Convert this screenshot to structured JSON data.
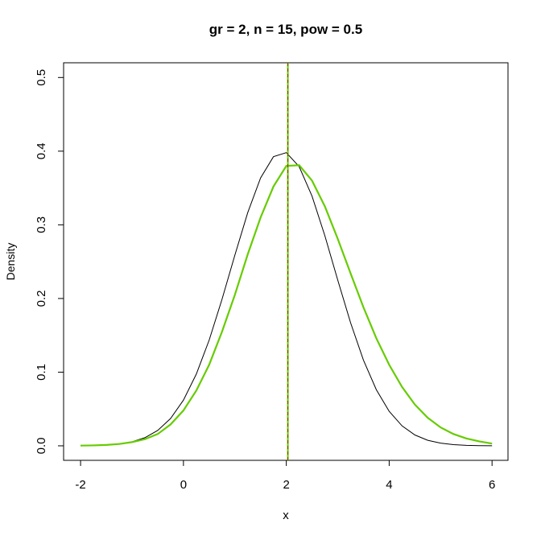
{
  "chart_data": {
    "type": "line",
    "title": "gr = 2, n = 15, pow = 0.5",
    "x_label": "x",
    "y_label": "Density",
    "xlim": [
      -2.33,
      6.31
    ],
    "ylim": [
      -0.0197,
      0.52
    ],
    "xticks": [
      -2,
      0,
      2,
      4,
      6
    ],
    "yticks": [
      {
        "value": 0,
        "label": "0.0"
      },
      0.1,
      0.2,
      0.3,
      0.4,
      0.5
    ],
    "x": [
      -2,
      -1.75,
      -1.5,
      -1.25,
      -1,
      -0.75,
      -0.5,
      -0.25,
      0,
      0.25,
      0.5,
      0.75,
      1,
      1.25,
      1.5,
      1.75,
      2,
      2.25,
      2.5,
      2.75,
      3,
      3.25,
      3.5,
      3.75,
      4,
      4.25,
      4.5,
      4.75,
      5,
      5.25,
      5.5,
      5.75,
      6
    ],
    "series": [
      {
        "color": "#000000",
        "values": [
          0.00018,
          0.00046,
          0.0011,
          0.0025,
          0.0055,
          0.011,
          0.0209,
          0.0371,
          0.062,
          0.0973,
          0.1435,
          0.1989,
          0.2589,
          0.3166,
          0.3637,
          0.3925,
          0.398,
          0.379,
          0.339,
          0.2851,
          0.225,
          0.167,
          0.1163,
          0.0762,
          0.0468,
          0.0271,
          0.0147,
          0.0075,
          0.0036,
          0.0016,
          0.0007,
          0.0003,
          0.0001
        ]
      },
      {
        "color": "#66cc00",
        "values": [
          0.0003,
          0.0006,
          0.0012,
          0.0025,
          0.005,
          0.009,
          0.016,
          0.029,
          0.048,
          0.075,
          0.11,
          0.155,
          0.205,
          0.26,
          0.31,
          0.352,
          0.38,
          0.381,
          0.36,
          0.325,
          0.281,
          0.234,
          0.188,
          0.146,
          0.11,
          0.08,
          0.056,
          0.038,
          0.025,
          0.016,
          0.01,
          0.006,
          0.003
        ]
      }
    ],
    "vlines": [
      {
        "x": 2.03,
        "color": "#66cc00"
      },
      {
        "x": 2.03,
        "color": "#993300",
        "dash": true
      }
    ]
  }
}
